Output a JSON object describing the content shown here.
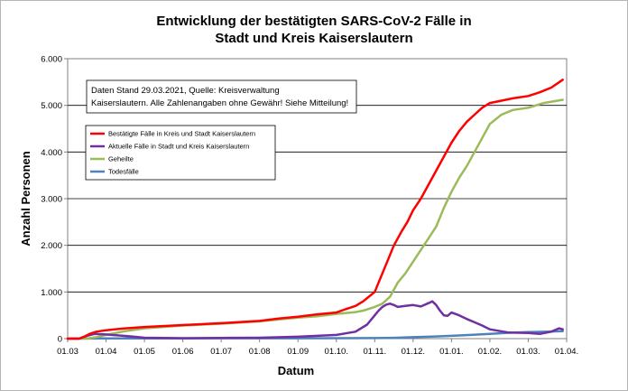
{
  "chart_data": {
    "type": "line",
    "title_line1": "Entwicklung der bestätigten SARS-CoV-2 Fälle in",
    "title_line2": "Stadt und Kreis Kaiserslautern",
    "xlabel": "Datum",
    "ylabel": "Anzahl Personen",
    "ylim": [
      0,
      6000
    ],
    "y_ticks": [
      0,
      1000,
      2000,
      3000,
      4000,
      5000,
      6000
    ],
    "y_tick_labels": [
      "0",
      "1.000",
      "2.000",
      "3.000",
      "4.000",
      "5.000",
      "6.000"
    ],
    "x_tick_labels": [
      "01.03",
      "01.04",
      "01.05",
      "01.06",
      "01.07",
      "01.08",
      "01.09",
      "01.10.",
      "01.11.",
      "01.12.",
      "01.01.",
      "01.02.",
      "01.03.",
      "01.04."
    ],
    "x_month_count": 13,
    "grid": true,
    "annotation_line1": "Daten Stand 29.03.2021, Quelle: Kreisverwaltung",
    "annotation_line2": "Kaiserslautern. Alle Zahlenangaben ohne Gewähr! Siehe Mitteilung!",
    "legend_position": "top-left",
    "series": [
      {
        "name": "Bestätigte Fälle in Kreis und Stadt Kaiserslautern",
        "color": "#ff0000",
        "x": [
          0,
          0.3,
          0.45,
          0.6,
          0.75,
          1,
          1.5,
          2,
          3,
          4,
          5,
          5.5,
          6,
          6.5,
          7,
          7.2,
          7.5,
          7.7,
          8,
          8.15,
          8.3,
          8.5,
          8.7,
          8.85,
          9,
          9.2,
          9.4,
          9.6,
          9.8,
          10,
          10.2,
          10.4,
          10.6,
          10.8,
          11,
          11.3,
          11.6,
          12,
          12.3,
          12.6,
          12.9
        ],
        "y": [
          0,
          0,
          50,
          110,
          150,
          180,
          220,
          250,
          290,
          330,
          380,
          430,
          470,
          520,
          560,
          620,
          700,
          800,
          1000,
          1300,
          1600,
          2000,
          2300,
          2500,
          2750,
          3000,
          3300,
          3600,
          3900,
          4200,
          4450,
          4650,
          4800,
          4950,
          5050,
          5100,
          5150,
          5200,
          5280,
          5380,
          5550
        ]
      },
      {
        "name": "Aktuelle Fälle in Stadt und Kreis Kaiserslautern",
        "color": "#7030a0",
        "x": [
          0,
          0.3,
          0.5,
          0.7,
          1,
          1.3,
          1.6,
          2,
          2.5,
          3,
          4,
          5,
          6,
          7,
          7.5,
          7.8,
          8,
          8.1,
          8.2,
          8.3,
          8.4,
          8.5,
          8.6,
          8.8,
          9,
          9.2,
          9.4,
          9.5,
          9.6,
          9.7,
          9.8,
          9.9,
          10,
          10.2,
          10.4,
          10.6,
          10.8,
          11,
          11.2,
          11.5,
          12,
          12.3,
          12.6,
          12.8,
          12.9
        ],
        "y": [
          0,
          0,
          60,
          100,
          90,
          70,
          50,
          20,
          15,
          10,
          15,
          20,
          40,
          80,
          150,
          300,
          500,
          600,
          680,
          730,
          750,
          720,
          680,
          700,
          720,
          690,
          760,
          800,
          720,
          600,
          500,
          490,
          560,
          500,
          420,
          350,
          280,
          200,
          170,
          130,
          120,
          100,
          150,
          220,
          200
        ]
      },
      {
        "name": "Geheilte",
        "color": "#9bbb59",
        "x": [
          0,
          0.5,
          0.75,
          1,
          1.5,
          2,
          3,
          4,
          5,
          5.5,
          6,
          6.5,
          7,
          7.5,
          7.7,
          8,
          8.2,
          8.4,
          8.6,
          8.8,
          9,
          9.2,
          9.4,
          9.6,
          9.8,
          10,
          10.2,
          10.4,
          10.6,
          10.8,
          11,
          11.3,
          11.6,
          12,
          12.4,
          12.9
        ],
        "y": [
          0,
          0,
          30,
          80,
          160,
          220,
          280,
          320,
          370,
          410,
          450,
          480,
          530,
          570,
          600,
          680,
          750,
          900,
          1200,
          1400,
          1650,
          1900,
          2150,
          2400,
          2800,
          3150,
          3450,
          3700,
          4000,
          4300,
          4600,
          4800,
          4900,
          4950,
          5050,
          5120
        ]
      },
      {
        "name": "Todesfälle",
        "color": "#4f81bd",
        "x": [
          0,
          1,
          2,
          3,
          4,
          5,
          6,
          7,
          8,
          8.5,
          9,
          9.5,
          10,
          10.5,
          11,
          11.5,
          12,
          12.5,
          12.9
        ],
        "y": [
          0,
          3,
          5,
          6,
          7,
          7,
          8,
          9,
          12,
          18,
          30,
          45,
          60,
          80,
          100,
          125,
          140,
          150,
          160
        ]
      }
    ]
  }
}
